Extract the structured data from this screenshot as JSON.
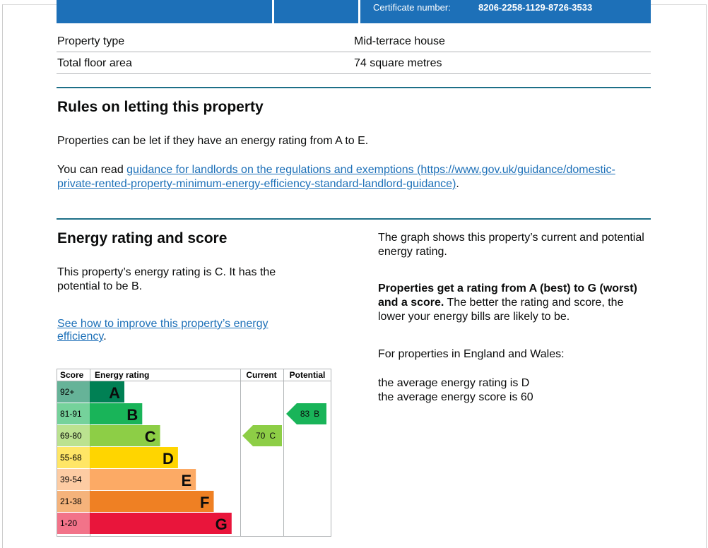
{
  "header": {
    "certificate_label": "Certificate number:",
    "certificate_number": "8206-2258-1129-8726-3533"
  },
  "summary": {
    "rows": [
      [
        "Property type",
        "Mid-terrace house"
      ],
      [
        "Total floor area",
        "74 square metres"
      ]
    ]
  },
  "rules": {
    "heading": "Rules on letting this property",
    "paragraph": "Properties can be let if they have an energy rating from A to E.",
    "guidance_prefix": "You can read ",
    "guidance_link": "guidance for landlords on the regulations and exemptions (https://www.gov.uk/guidance/domestic-private-rented-property-minimum-energy-efficiency-standard-landlord-guidance)",
    "guidance_suffix": "."
  },
  "energy": {
    "heading": "Energy rating and score",
    "summary": "This property’s energy rating is C. It has the potential to be B.",
    "improve_link": "See how to improve this property’s energy efficiency",
    "improve_suffix": ".",
    "graph_intro": "The graph shows this property’s current and potential energy rating.",
    "ratings_bold": "Properties get a rating from A (best) to G (worst) and a score.",
    "ratings_rest": " The better the rating and score, the lower your energy bills are likely to be.",
    "region": "For properties in England and Wales:",
    "average_rating": "the average energy rating is D",
    "average_score": "the average energy score is 60"
  },
  "chart": {
    "headers": {
      "score": "Score",
      "rating": "Energy rating",
      "current": "Current",
      "potential": "Potential"
    },
    "bands": [
      {
        "score": "92+",
        "letter": "A",
        "color": "#008054",
        "light": "#66b398"
      },
      {
        "score": "81-91",
        "letter": "B",
        "color": "#19b459",
        "light": "#75d29b"
      },
      {
        "score": "69-80",
        "letter": "C",
        "color": "#8dce46",
        "light": "#bbe290"
      },
      {
        "score": "55-68",
        "letter": "D",
        "color": "#ffd500",
        "light": "#ffe666"
      },
      {
        "score": "39-54",
        "letter": "E",
        "color": "#fcaa65",
        "light": "#fdcca3"
      },
      {
        "score": "21-38",
        "letter": "F",
        "color": "#ef8023",
        "light": "#f5b37b"
      },
      {
        "score": "1-20",
        "letter": "G",
        "color": "#e9153b",
        "light": "#f27389"
      }
    ],
    "current": {
      "score": 70,
      "letter": "C"
    },
    "potential": {
      "score": 83,
      "letter": "B"
    }
  }
}
